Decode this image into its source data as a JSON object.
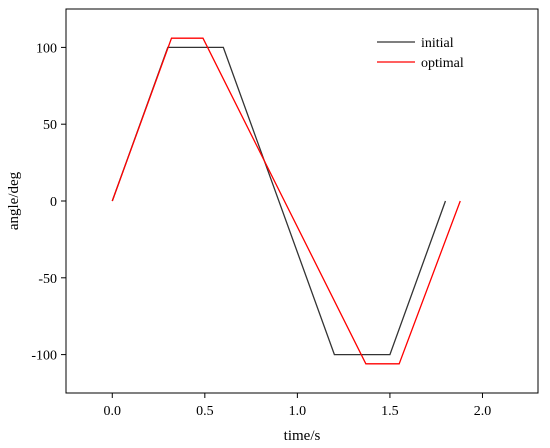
{
  "chart_data": {
    "type": "line",
    "xlabel": "time/s",
    "ylabel": "angle/deg",
    "xlim": [
      -0.25,
      2.3
    ],
    "ylim": [
      -125,
      125
    ],
    "xticks": [
      0.0,
      0.5,
      1.0,
      1.5,
      2.0
    ],
    "xtick_labels": [
      "0.0",
      "0.5",
      "1.0",
      "1.5",
      "2.0"
    ],
    "yticks": [
      -100,
      -50,
      0,
      50,
      100
    ],
    "ytick_labels": [
      "-100",
      "-50",
      "0",
      "50",
      "100"
    ],
    "grid": false,
    "legend_position": "top-right",
    "series": [
      {
        "name": "initial",
        "color": "#333333",
        "x": [
          0.0,
          0.3,
          0.6,
          1.2,
          1.5,
          1.8
        ],
        "y": [
          0,
          100,
          100,
          -100,
          -100,
          0
        ]
      },
      {
        "name": "optimal",
        "color": "#ff0000",
        "x": [
          0.0,
          0.32,
          0.49,
          1.37,
          1.55,
          1.88
        ],
        "y": [
          0,
          106,
          106,
          -106,
          -106,
          0
        ]
      }
    ]
  }
}
